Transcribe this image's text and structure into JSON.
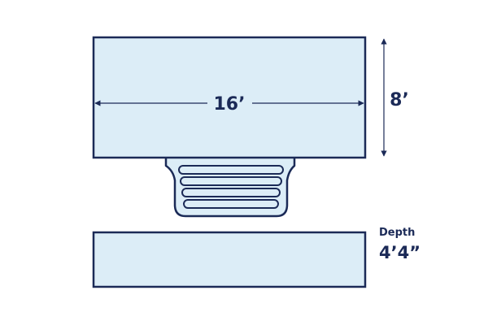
{
  "dimensions": {
    "length": "16’",
    "width": "8’",
    "depth_label": "Depth",
    "depth": "4’4”"
  },
  "colors": {
    "stroke": "#1b2a57",
    "fill": "#dcedf7",
    "water_line": "#ffffff"
  }
}
